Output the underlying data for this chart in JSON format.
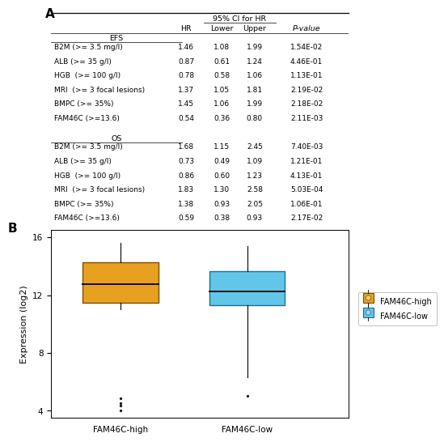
{
  "table_title": "A",
  "ci_header": "95% CI for HR",
  "col_headers": [
    "HR",
    "Lower",
    "Upper",
    "P-value"
  ],
  "efs_label": "EFS",
  "os_label": "OS",
  "efs_rows": [
    [
      "B2M (>= 3.5 mg/l)",
      "1.46",
      "1.08",
      "1.99",
      "1.54E-02"
    ],
    [
      "ALB (>= 35 g/l)",
      "0.87",
      "0.61",
      "1.24",
      "4.46E-01"
    ],
    [
      "HGB  (>= 100 g/l)",
      "0.78",
      "0.58",
      "1.06",
      "1.13E-01"
    ],
    [
      "MRI  (>= 3 focal lesions)",
      "1.37",
      "1.05",
      "1.81",
      "2.19E-02"
    ],
    [
      "BMPC (>= 35%)",
      "1.45",
      "1.06",
      "1.99",
      "2.18E-02"
    ],
    [
      "FAM46C (>=13.6)",
      "0.54",
      "0.36",
      "0.80",
      "2.11E-03"
    ]
  ],
  "os_rows": [
    [
      "B2M (>= 3.5 mg/l)",
      "1.68",
      "1.15",
      "2.45",
      "7.40E-03"
    ],
    [
      "ALB (>= 35 g/l)",
      "0.73",
      "0.49",
      "1.09",
      "1.21E-01"
    ],
    [
      "HGB  (>= 100 g/l)",
      "0.86",
      "0.60",
      "1.23",
      "4.13E-01"
    ],
    [
      "MRI  (>= 3 focal lesions)",
      "1.83",
      "1.30",
      "2.58",
      "5.03E-04"
    ],
    [
      "BMPC (>= 35%)",
      "1.38",
      "0.93",
      "2.05",
      "1.06E-01"
    ],
    [
      "FAM46C (>=13.6)",
      "0.59",
      "0.38",
      "0.93",
      "2.17E-02"
    ]
  ],
  "boxplot_title": "B",
  "boxplot_xlabel_high": "FAM46C-high",
  "boxplot_xlabel_low": "FAM46C-low",
  "boxplot_ylabel": "Expression (log2)",
  "ylim": [
    3.5,
    16.5
  ],
  "yticks": [
    4,
    8,
    12,
    16
  ],
  "high_color": "#E8A020",
  "low_color": "#62C6E8",
  "high_edge_color": "#7A5000",
  "low_edge_color": "#1A6E9A",
  "high_box": {
    "q1": 11.5,
    "median": 12.75,
    "q3": 14.3,
    "whisker_low": 11.0,
    "whisker_high": 15.65
  },
  "low_box": {
    "q1": 11.3,
    "median": 12.25,
    "q3": 13.65,
    "whisker_low": 6.3,
    "whisker_high": 15.4
  },
  "high_outliers": [
    4.85,
    4.55,
    4.35,
    4.02
  ],
  "low_outliers": [
    5.05
  ],
  "legend_high": "FAM46C-high",
  "legend_low": "FAM46C-low",
  "background_color": "#ffffff"
}
